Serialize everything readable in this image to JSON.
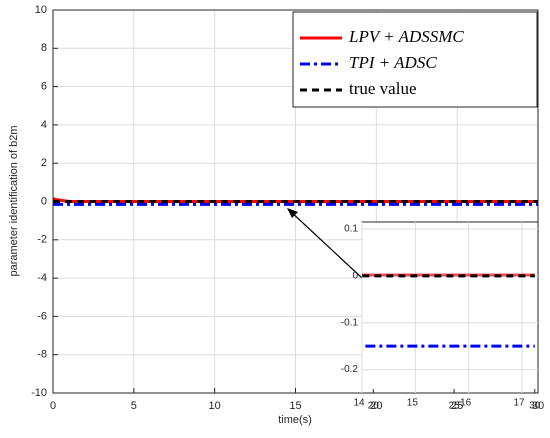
{
  "chart_data": {
    "type": "line",
    "xlabel": "time(s)",
    "ylabel": "parameter identification of b2m",
    "xlim": [
      0,
      30
    ],
    "xticks": [
      0,
      5,
      10,
      15,
      20,
      25,
      30
    ],
    "ylim": [
      -10,
      10
    ],
    "yticks": [
      -10,
      -8,
      -6,
      -4,
      -2,
      0,
      2,
      4,
      6,
      8,
      10
    ],
    "grid": true,
    "legend": "upper right",
    "series": [
      {
        "name": "LPV + ADSSMC",
        "color": "#ff0000",
        "style": "solid",
        "x": [
          0,
          0.2,
          1,
          30
        ],
        "values": [
          0.15,
          0.1,
          0.002,
          0.002
        ]
      },
      {
        "name": "TPI + ADSC",
        "color": "#0000ff",
        "style": "dashdot",
        "x": [
          0,
          30
        ],
        "values": [
          -0.15,
          -0.15
        ]
      },
      {
        "name": "true value",
        "color": "#000000",
        "style": "dashed",
        "x": [
          0,
          30
        ],
        "values": [
          0,
          0
        ]
      }
    ],
    "inset": {
      "xlim": [
        19.3,
        30.2
      ],
      "xticks": [
        20,
        25,
        30
      ],
      "xlim2": [
        14,
        17.3
      ],
      "xticks2": [
        14,
        15,
        16,
        17
      ],
      "ylim": [
        -0.25,
        0.115
      ],
      "yticks": [
        0.1,
        0,
        -0.1,
        -0.2
      ]
    }
  }
}
